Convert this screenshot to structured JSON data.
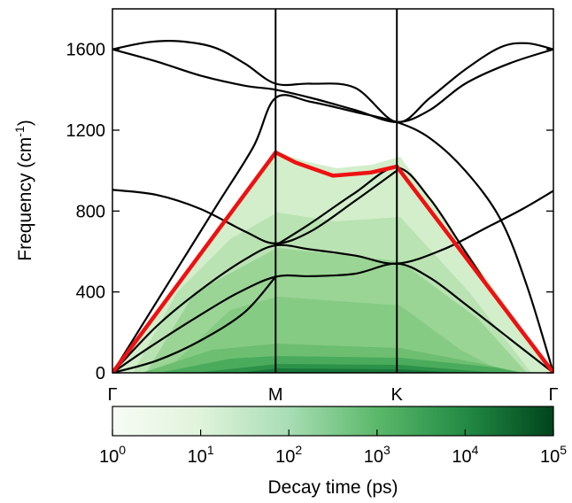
{
  "chart_data": {
    "type": "line",
    "title": "",
    "ylabel": "Frequency (cm",
    "ylabel_sup": "-1",
    "ylabel_close": ")",
    "ylim": [
      0,
      1800
    ],
    "yticks": [
      "0",
      "400",
      "800",
      "1200",
      "1600"
    ],
    "ytick_values": [
      0,
      400,
      800,
      1200,
      1600
    ],
    "x_points": [
      {
        "label": "Γ",
        "pos": 0
      },
      {
        "label": "M",
        "pos": 0.37
      },
      {
        "label": "K",
        "pos": 0.645
      },
      {
        "label": "Γ",
        "pos": 1
      }
    ],
    "grid": false,
    "line_color": "#000000",
    "series": [
      {
        "points": [
          [
            0,
            0
          ],
          [
            0.1,
            230
          ],
          [
            0.2,
            410
          ],
          [
            0.3,
            560
          ],
          [
            0.37,
            630
          ],
          [
            0.45,
            610
          ],
          [
            0.55,
            580
          ],
          [
            0.645,
            540
          ],
          [
            0.75,
            610
          ],
          [
            0.85,
            720
          ],
          [
            0.93,
            810
          ],
          [
            1,
            900
          ]
        ]
      },
      {
        "points": [
          [
            0,
            0
          ],
          [
            0.08,
            120
          ],
          [
            0.18,
            260
          ],
          [
            0.28,
            390
          ],
          [
            0.37,
            475
          ],
          [
            0.45,
            478
          ],
          [
            0.55,
            490
          ],
          [
            0.645,
            540
          ],
          [
            0.72,
            470
          ],
          [
            0.8,
            340
          ],
          [
            0.9,
            170
          ],
          [
            1,
            0
          ]
        ]
      },
      {
        "points": [
          [
            0,
            0
          ],
          [
            0.1,
            60
          ],
          [
            0.2,
            160
          ],
          [
            0.3,
            300
          ],
          [
            0.37,
            475
          ]
        ]
      },
      {
        "points": [
          [
            0.37,
            630
          ],
          [
            0.45,
            740
          ],
          [
            0.55,
            890
          ],
          [
            0.645,
            1015
          ],
          [
            0.72,
            860
          ],
          [
            0.8,
            600
          ],
          [
            0.9,
            280
          ],
          [
            1,
            0
          ]
        ]
      },
      {
        "points": [
          [
            0,
            905
          ],
          [
            0.1,
            880
          ],
          [
            0.2,
            810
          ],
          [
            0.3,
            700
          ],
          [
            0.37,
            640
          ],
          [
            0.45,
            700
          ],
          [
            0.55,
            850
          ],
          [
            0.645,
            1000
          ]
        ]
      },
      {
        "points": [
          [
            0,
            0
          ],
          [
            0.08,
            280
          ],
          [
            0.16,
            560
          ],
          [
            0.24,
            840
          ],
          [
            0.32,
            1120
          ],
          [
            0.37,
            1360
          ],
          [
            0.45,
            1340
          ],
          [
            0.55,
            1290
          ],
          [
            0.645,
            1240
          ],
          [
            0.72,
            1160
          ],
          [
            0.8,
            1000
          ],
          [
            0.88,
            760
          ],
          [
            0.94,
            430
          ],
          [
            1,
            0
          ]
        ]
      },
      {
        "points": [
          [
            0,
            1600
          ],
          [
            0.1,
            1540
          ],
          [
            0.2,
            1470
          ],
          [
            0.3,
            1420
          ],
          [
            0.37,
            1400
          ],
          [
            0.45,
            1360
          ],
          [
            0.55,
            1300
          ],
          [
            0.645,
            1240
          ],
          [
            0.72,
            1300
          ],
          [
            0.8,
            1430
          ],
          [
            0.9,
            1530
          ],
          [
            1,
            1600
          ]
        ]
      },
      {
        "points": [
          [
            0,
            1600
          ],
          [
            0.08,
            1635
          ],
          [
            0.15,
            1640
          ],
          [
            0.23,
            1610
          ],
          [
            0.3,
            1530
          ],
          [
            0.37,
            1430
          ],
          [
            0.45,
            1430
          ],
          [
            0.55,
            1410
          ],
          [
            0.645,
            1240
          ],
          [
            0.72,
            1360
          ],
          [
            0.8,
            1500
          ],
          [
            0.88,
            1610
          ],
          [
            0.94,
            1630
          ],
          [
            1,
            1600
          ]
        ]
      }
    ],
    "highlight": {
      "color": "#ee1111",
      "points": [
        [
          0,
          0
        ],
        [
          0.37,
          1090
        ],
        [
          0.415,
          1040
        ],
        [
          0.5,
          975
        ],
        [
          0.585,
          990
        ],
        [
          0.645,
          1020
        ],
        [
          1,
          0
        ]
      ]
    },
    "colorbar": {
      "label": "Decay time (ps)",
      "scale": "log",
      "range": [
        1,
        100000
      ],
      "ticks": [
        {
          "base": "10",
          "exp": "0"
        },
        {
          "base": "10",
          "exp": "1"
        },
        {
          "base": "10",
          "exp": "2"
        },
        {
          "base": "10",
          "exp": "3"
        },
        {
          "base": "10",
          "exp": "4"
        },
        {
          "base": "10",
          "exp": "5"
        }
      ],
      "color_low": "#f7fcf5",
      "color_high": "#00441b"
    }
  }
}
